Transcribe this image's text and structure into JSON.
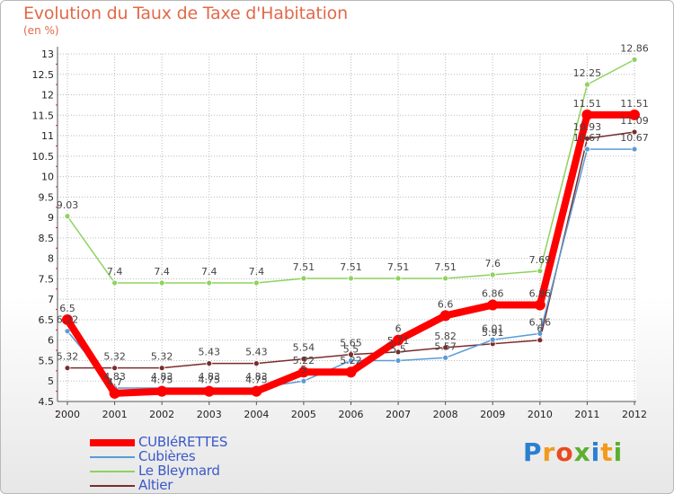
{
  "page": {
    "title": "Evolution du Taux de Taxe d'Habitation",
    "unit": "(en %)",
    "logo": "Proxiti"
  },
  "colors": {
    "title": "#e1694a",
    "grid": "#bbbbbb",
    "axis_red": "#e02020",
    "logo_letters": [
      "#2a7fd0",
      "#f29a1c",
      "#e84b1f",
      "#5bb02f",
      "#2a7fd0",
      "#f29a1c",
      "#5bb02f"
    ]
  },
  "chart_data": {
    "type": "line",
    "title": "Evolution du Taux de Taxe d'Habitation",
    "ylabel": "(en %)",
    "xlabel": "",
    "ylim": [
      4.5,
      13
    ],
    "yticks": [
      "4.5",
      "5",
      "5.5",
      "6",
      "6.5",
      "7",
      "7.5",
      "8",
      "8.5",
      "9",
      "9.5",
      "10",
      "10.5",
      "11",
      "11.5",
      "12",
      "12.5",
      "13"
    ],
    "categories": [
      "2000",
      "2001",
      "2002",
      "2003",
      "2004",
      "2005",
      "2006",
      "2007",
      "2008",
      "2009",
      "2010",
      "2011",
      "2012"
    ],
    "grid": true,
    "legend_position": "bottom-left",
    "series": [
      {
        "name": "CUBIéRETTES",
        "color": "#ff0000",
        "width": "thick",
        "values": [
          6.5,
          4.7,
          4.75,
          4.75,
          4.75,
          5.22,
          5.22,
          6.0,
          6.6,
          6.86,
          6.86,
          11.51,
          11.51
        ],
        "labels": [
          "6.5",
          "4.7",
          "4.75",
          "4.75",
          "4.75",
          "5.22",
          "5.22",
          "6",
          "6.6",
          "6.86",
          "6.86",
          "11.51",
          "11.51"
        ]
      },
      {
        "name": "Cubières",
        "color": "#5b9bd5",
        "width": "thin",
        "values": [
          6.22,
          4.83,
          4.83,
          4.83,
          4.83,
          5.0,
          5.5,
          5.5,
          5.57,
          6.01,
          6.16,
          10.67,
          10.67
        ],
        "labels": [
          "6.22",
          "4.83",
          "4.83",
          "4.83",
          "4.83",
          "5",
          "5.5",
          "5.5",
          "5.57",
          "6.01",
          "6.16",
          "10.67",
          "10.67"
        ]
      },
      {
        "name": "Le Bleymard",
        "color": "#8dd35f",
        "width": "thin",
        "values": [
          9.03,
          7.4,
          7.4,
          7.4,
          7.4,
          7.51,
          7.51,
          7.51,
          7.51,
          7.6,
          7.69,
          12.25,
          12.86
        ],
        "labels": [
          "9.03",
          "7.4",
          "7.4",
          "7.4",
          "7.4",
          "7.51",
          "7.51",
          "7.51",
          "7.51",
          "7.6",
          "7.69",
          "12.25",
          "12.86"
        ]
      },
      {
        "name": "Altier",
        "color": "#7b2c2c",
        "width": "thin",
        "values": [
          5.32,
          5.32,
          5.32,
          5.43,
          5.43,
          5.54,
          5.65,
          5.71,
          5.82,
          5.91,
          6.0,
          10.93,
          11.09
        ],
        "labels": [
          "5.32",
          "5.32",
          "5.32",
          "5.43",
          "5.43",
          "5.54",
          "5.65",
          "5.71",
          "5.82",
          "5.91",
          "6",
          "10.93",
          "11.09"
        ]
      }
    ]
  }
}
